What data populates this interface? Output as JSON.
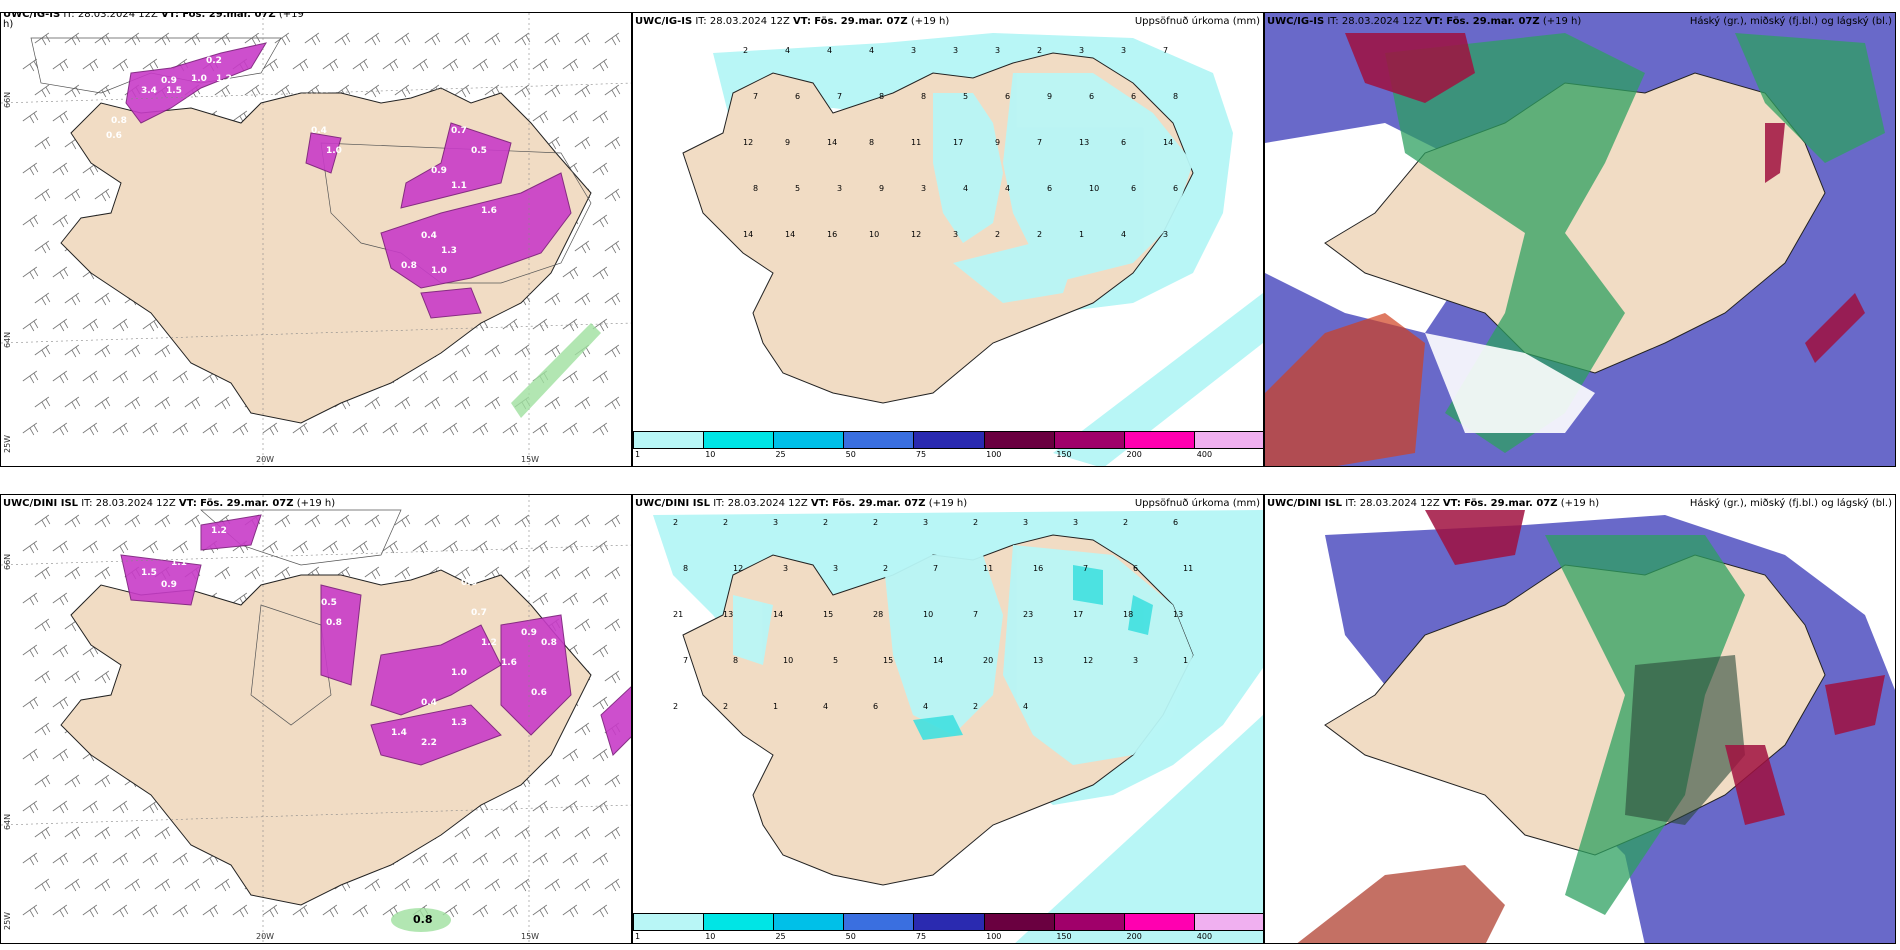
{
  "panels": [
    {
      "row": 0,
      "col": 0,
      "model": "UWC/IG-IS",
      "it": "28.03.2024 12Z",
      "vt_label": "VT:",
      "vt": "Fös. 29.mar. 07Z",
      "lead": "(+19",
      "lead2": "h)",
      "right": ""
    },
    {
      "row": 0,
      "col": 1,
      "model": "UWC/IG-IS",
      "it": "28.03.2024 12Z",
      "vt_label": "VT:",
      "vt": "Fös. 29.mar. 07Z",
      "lead": "(+19 h)",
      "right": "Uppsöfnuð úrkoma (mm)"
    },
    {
      "row": 0,
      "col": 2,
      "model": "UWC/IG-IS",
      "it": "28.03.2024 12Z",
      "vt_label": "VT:",
      "vt": "Fös. 29.mar. 07Z",
      "lead": "(+19 h)",
      "right": "Háský (gr.), miðský (fj.bl.) og lágský (bl.)"
    },
    {
      "row": 1,
      "col": 0,
      "model": "UWC/DINI ISL",
      "it": "28.03.2024 12Z",
      "vt_label": "VT:",
      "vt": "Fös. 29.mar. 07Z",
      "lead": "(+19 h)",
      "right": ""
    },
    {
      "row": 1,
      "col": 1,
      "model": "UWC/DINI ISL",
      "it": "28.03.2024 12Z",
      "vt_label": "VT:",
      "vt": "Fös. 29.mar. 07Z",
      "lead": "(+19 h)",
      "right": "Uppsöfnuð úrkoma (mm)"
    },
    {
      "row": 1,
      "col": 2,
      "model": "UWC/DINI ISL",
      "it": "28.03.2024 12Z",
      "vt_label": "VT:",
      "vt": "Fös. 29.mar. 07Z",
      "lead": "(+19 h)",
      "right": "Háský (gr.), miðský (fj.bl.) og lágský (bl.)"
    }
  ],
  "grid_labels": {
    "lon_20w": "20W",
    "lon_15w": "15W",
    "lat_66n": "66N",
    "lat_64n": "64N",
    "lat_62n": "62N",
    "lat_25w": "25W"
  },
  "precip_colorbar": {
    "ticks": [
      "1",
      "10",
      "25",
      "50",
      "75",
      "100",
      "150",
      "200",
      "400"
    ],
    "colors": [
      "#b8f6f6",
      "#00e5e5",
      "#00c0e8",
      "#3a6fe0",
      "#2a2ab0",
      "#6a0040",
      "#a0006a",
      "#ff00b0",
      "#f0b0f0"
    ]
  },
  "colors": {
    "land": "#f1dcc4",
    "snow_fill": "#c83cc8",
    "precip_light": "#b8f6f6",
    "precip_mid": "#40e0e0",
    "cloud_high": "#2ea060",
    "cloud_mid": "#5050c0",
    "cloud_low": "#a01040",
    "cloud_low_red": "#d04020"
  },
  "snow_labels_top": [
    "0.3",
    "0.2",
    "0.9",
    "1.0",
    "1.2",
    "3.4",
    "1.5",
    "0.8",
    "0.6",
    "0.4",
    "1.0",
    "0.7",
    "0.5",
    "0.9",
    "1.1",
    "1.6",
    "0.4",
    "1.3",
    "0.8",
    "1.0"
  ],
  "snow_labels_bot": [
    "1.2",
    "1.5",
    "0.9",
    "1.1",
    "0.5",
    "0.8",
    "0.6",
    "0.7",
    "1.2",
    "1.6",
    "0.9",
    "0.8",
    "0.4",
    "1.0",
    "1.4",
    "2.2",
    "1.3",
    "0.6"
  ],
  "snow_extra_bot": "0.8",
  "precip_nums_top": [
    "2",
    "4",
    "4",
    "4",
    "3",
    "3",
    "3",
    "2",
    "3",
    "3",
    "7",
    "7",
    "6",
    "7",
    "8",
    "8",
    "5",
    "6",
    "9",
    "6",
    "6",
    "8",
    "12",
    "9",
    "14",
    "8",
    "11",
    "17",
    "9",
    "7",
    "13",
    "6",
    "14",
    "8",
    "5",
    "3",
    "9",
    "3",
    "4",
    "4",
    "6",
    "10",
    "6",
    "6",
    "14",
    "14",
    "16",
    "10",
    "12",
    "3",
    "2",
    "2",
    "1",
    "4",
    "3"
  ],
  "precip_nums_bot": [
    "2",
    "2",
    "3",
    "2",
    "2",
    "3",
    "2",
    "3",
    "3",
    "2",
    "6",
    "8",
    "12",
    "3",
    "3",
    "2",
    "7",
    "11",
    "16",
    "7",
    "6",
    "11",
    "21",
    "13",
    "14",
    "15",
    "28",
    "10",
    "7",
    "23",
    "17",
    "18",
    "13",
    "7",
    "8",
    "10",
    "5",
    "15",
    "14",
    "20",
    "13",
    "12",
    "3",
    "1",
    "2",
    "2",
    "1",
    "4",
    "6",
    "4",
    "2",
    "4"
  ]
}
